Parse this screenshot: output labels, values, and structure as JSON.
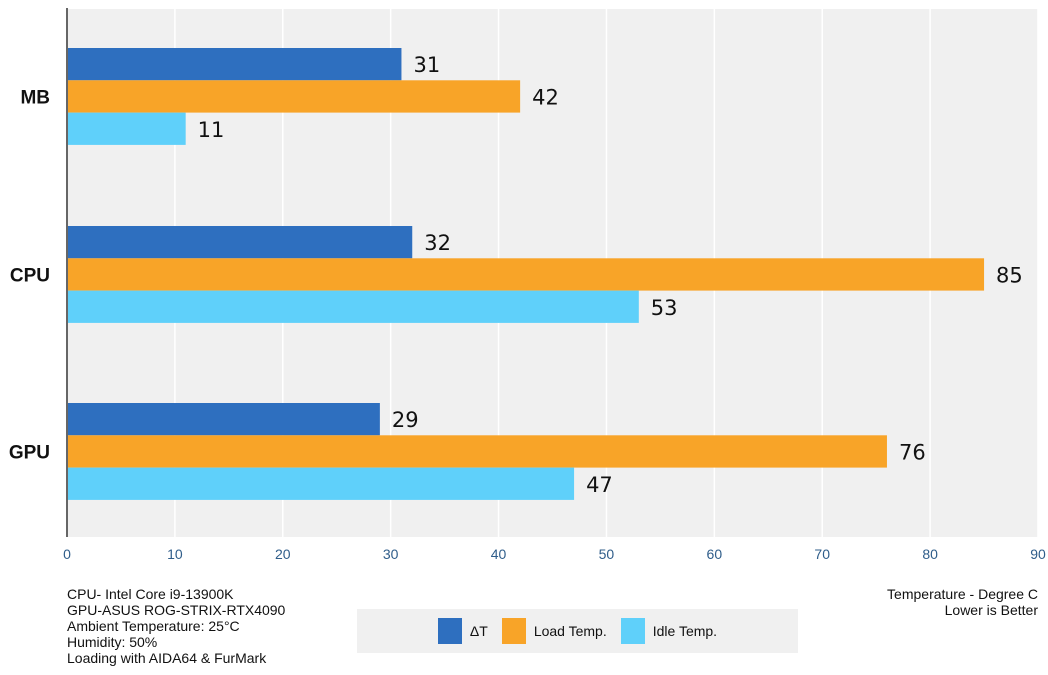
{
  "chart_data": {
    "type": "bar",
    "orientation": "horizontal",
    "categories": [
      "MB",
      "CPU",
      "GPU"
    ],
    "series": [
      {
        "name": "ΔT",
        "color": "#2e6fbf",
        "values": [
          31,
          32,
          29
        ]
      },
      {
        "name": "Load Temp.",
        "color": "#f8a428",
        "values": [
          42,
          85,
          76
        ]
      },
      {
        "name": "Idle Temp.",
        "color": "#5fd0fa",
        "values": [
          11,
          53,
          47
        ]
      }
    ],
    "xlim": [
      0,
      90
    ],
    "xticks": [
      0,
      10,
      20,
      30,
      40,
      50,
      60,
      70,
      80,
      90
    ],
    "grid": true,
    "legend_placement": "bottom",
    "xlabel": [
      "Temperature - Degree C",
      "Lower is Better"
    ],
    "notes": [
      "CPU- Intel Core i9-13900K",
      "GPU-ASUS ROG-STRIX-RTX4090",
      "Ambient Temperature: 25°C",
      "Humidity: 50%",
      "Loading with AIDA64  & FurMark"
    ]
  }
}
